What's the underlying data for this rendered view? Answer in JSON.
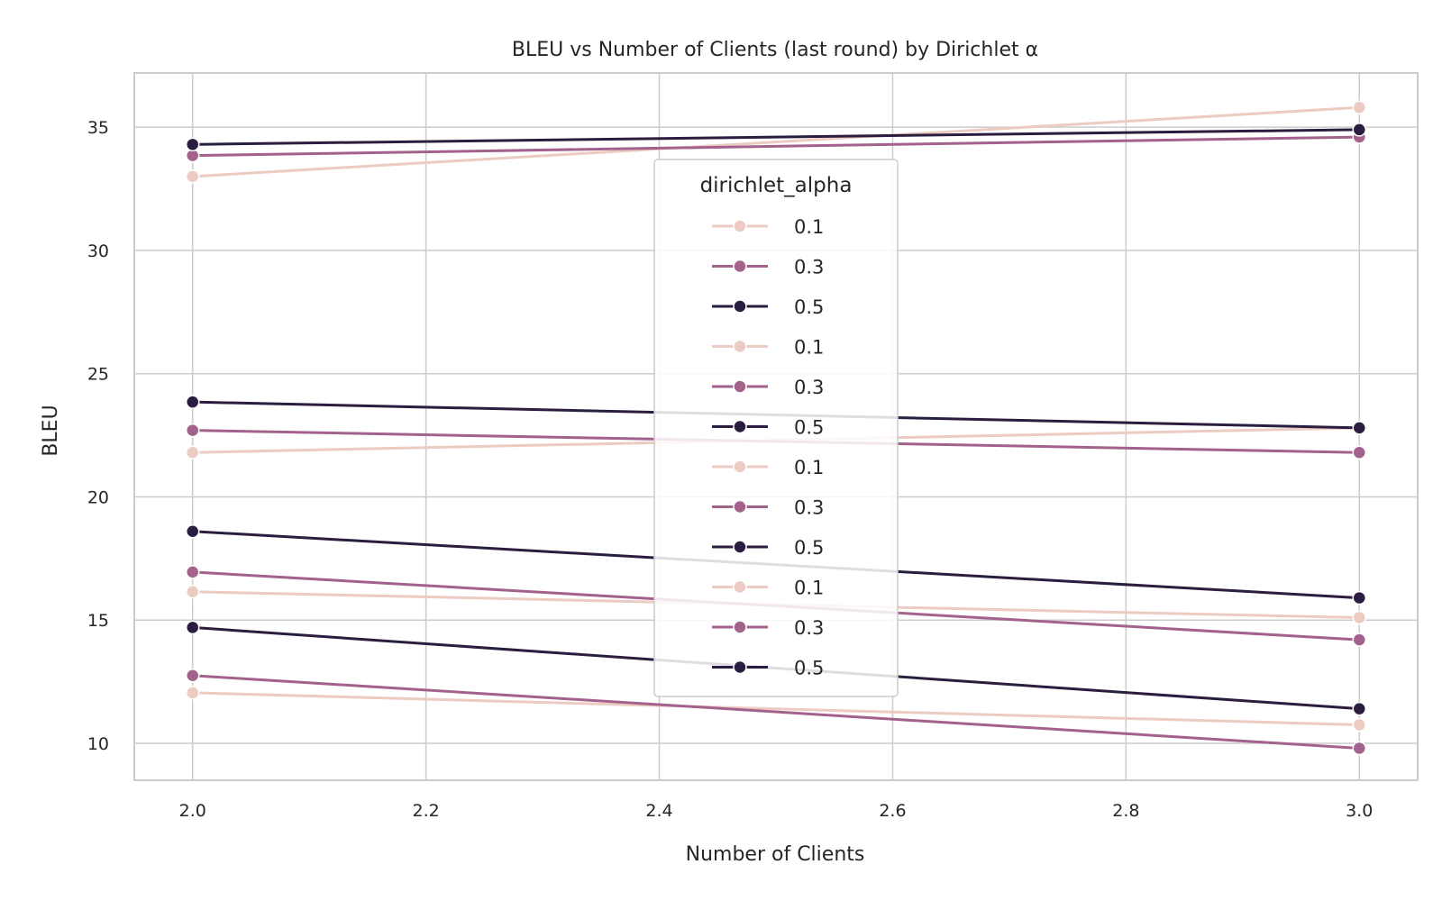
{
  "chart_data": {
    "type": "line",
    "title": "BLEU vs Number of Clients (last round) by Dirichlet α",
    "xlabel": "Number of Clients",
    "ylabel": "BLEU",
    "xlim": [
      1.95,
      3.05
    ],
    "ylim": [
      8.5,
      37.2
    ],
    "xticks": [
      2.0,
      2.2,
      2.4,
      2.6,
      2.8,
      3.0
    ],
    "xtick_labels": [
      "2.0",
      "2.2",
      "2.4",
      "2.6",
      "2.8",
      "3.0"
    ],
    "yticks": [
      10,
      15,
      20,
      25,
      30,
      35
    ],
    "ytick_labels": [
      "10",
      "15",
      "20",
      "25",
      "30",
      "35"
    ],
    "grid": true,
    "legend": {
      "title": "dirichlet_alpha",
      "placement": "center"
    },
    "colors": {
      "0.1": "#eccbc2",
      "0.3": "#a3628c",
      "0.5": "#2a1d3f"
    },
    "x": [
      2.0,
      3.0
    ],
    "series": [
      {
        "name": "0.1",
        "alpha": "0.1",
        "values": [
          33.0,
          35.8
        ]
      },
      {
        "name": "0.3",
        "alpha": "0.3",
        "values": [
          33.85,
          34.6
        ]
      },
      {
        "name": "0.5",
        "alpha": "0.5",
        "values": [
          34.3,
          34.9
        ]
      },
      {
        "name": "0.1",
        "alpha": "0.1",
        "values": [
          21.8,
          22.8
        ]
      },
      {
        "name": "0.3",
        "alpha": "0.3",
        "values": [
          22.7,
          21.8
        ]
      },
      {
        "name": "0.5",
        "alpha": "0.5",
        "values": [
          23.85,
          22.8
        ]
      },
      {
        "name": "0.1",
        "alpha": "0.1",
        "values": [
          16.15,
          15.1
        ]
      },
      {
        "name": "0.3",
        "alpha": "0.3",
        "values": [
          16.95,
          14.2
        ]
      },
      {
        "name": "0.5",
        "alpha": "0.5",
        "values": [
          18.6,
          15.9
        ]
      },
      {
        "name": "0.1",
        "alpha": "0.1",
        "values": [
          12.05,
          10.75
        ]
      },
      {
        "name": "0.3",
        "alpha": "0.3",
        "values": [
          12.75,
          9.8
        ]
      },
      {
        "name": "0.5",
        "alpha": "0.5",
        "values": [
          14.7,
          11.4
        ]
      }
    ]
  }
}
